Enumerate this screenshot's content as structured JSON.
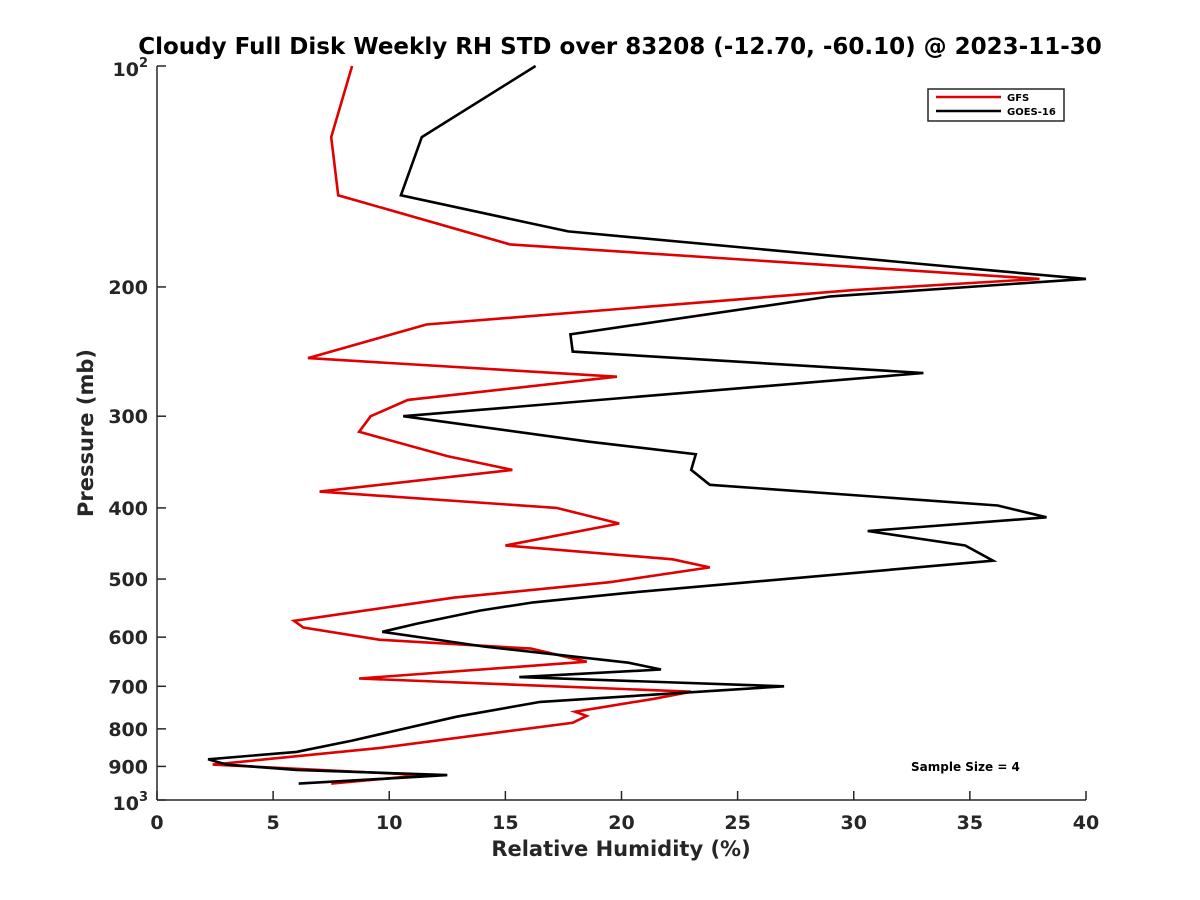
{
  "chart_data": {
    "type": "line",
    "title": "Cloudy Full Disk Weekly RH STD over 83208 (-12.70, -60.10) @ 2023-11-30",
    "xlabel": "Relative Humidity (%)",
    "ylabel": "Pressure (mb)",
    "xlim": [
      0,
      40
    ],
    "ylim": [
      100,
      1000
    ],
    "y_scale": "log",
    "y_reversed": true,
    "x_ticks": [
      "0",
      "5",
      "10",
      "15",
      "20",
      "25",
      "30",
      "35",
      "40"
    ],
    "y_ticks": [
      {
        "value": 100,
        "base": "10",
        "exp": "2"
      },
      {
        "value": 200,
        "label": "200"
      },
      {
        "value": 300,
        "label": "300"
      },
      {
        "value": 400,
        "label": "400"
      },
      {
        "value": 500,
        "label": "500"
      },
      {
        "value": 600,
        "label": "600"
      },
      {
        "value": 700,
        "label": "700"
      },
      {
        "value": 800,
        "label": "800"
      },
      {
        "value": 900,
        "label": "900"
      },
      {
        "value": 1000,
        "base": "10",
        "exp": "3"
      }
    ],
    "legend_position": "top-right",
    "annotation": "Sample Size = 4",
    "series": [
      {
        "name": "GFS",
        "color": "#e00000",
        "points": [
          [
            8.4,
            100
          ],
          [
            7.5,
            125
          ],
          [
            7.8,
            150
          ],
          [
            15.2,
            175
          ],
          [
            38.0,
            195
          ],
          [
            30.0,
            202
          ],
          [
            11.6,
            225
          ],
          [
            6.5,
            250
          ],
          [
            19.8,
            265
          ],
          [
            10.8,
            285
          ],
          [
            9.2,
            300
          ],
          [
            8.7,
            315
          ],
          [
            12.5,
            340
          ],
          [
            15.3,
            355
          ],
          [
            7.0,
            380
          ],
          [
            17.2,
            400
          ],
          [
            19.9,
            420
          ],
          [
            15.0,
            450
          ],
          [
            22.2,
            470
          ],
          [
            23.8,
            482
          ],
          [
            19.5,
            505
          ],
          [
            12.8,
            530
          ],
          [
            5.9,
            570
          ],
          [
            6.3,
            582
          ],
          [
            9.6,
            605
          ],
          [
            16.1,
            622
          ],
          [
            18.5,
            648
          ],
          [
            8.7,
            683
          ],
          [
            23.0,
            712
          ],
          [
            21.4,
            728
          ],
          [
            18.0,
            758
          ],
          [
            18.5,
            768
          ],
          [
            17.9,
            785
          ],
          [
            9.5,
            850
          ],
          [
            2.4,
            895
          ],
          [
            11.5,
            925
          ],
          [
            7.5,
            950
          ]
        ]
      },
      {
        "name": "GOES-16",
        "color": "#000000",
        "points": [
          [
            16.3,
            100
          ],
          [
            11.4,
            125
          ],
          [
            10.5,
            150
          ],
          [
            17.7,
            168
          ],
          [
            36.0,
            190
          ],
          [
            40.0,
            195
          ],
          [
            29.0,
            206
          ],
          [
            17.8,
            232
          ],
          [
            17.9,
            245
          ],
          [
            33.0,
            262
          ],
          [
            10.6,
            300
          ],
          [
            18.6,
            325
          ],
          [
            23.2,
            338
          ],
          [
            23.0,
            355
          ],
          [
            23.8,
            372
          ],
          [
            36.2,
            397
          ],
          [
            38.3,
            412
          ],
          [
            30.6,
            430
          ],
          [
            34.8,
            450
          ],
          [
            36.0,
            472
          ],
          [
            20.3,
            522
          ],
          [
            16.2,
            538
          ],
          [
            13.9,
            552
          ],
          [
            11.2,
            575
          ],
          [
            9.7,
            590
          ],
          [
            14.1,
            618
          ],
          [
            20.3,
            650
          ],
          [
            21.7,
            664
          ],
          [
            15.6,
            680
          ],
          [
            27.0,
            700
          ],
          [
            16.5,
            735
          ],
          [
            12.9,
            770
          ],
          [
            10.6,
            800
          ],
          [
            8.4,
            830
          ],
          [
            6.0,
            860
          ],
          [
            2.2,
            880
          ],
          [
            3.0,
            895
          ],
          [
            6.0,
            910
          ],
          [
            12.5,
            925
          ],
          [
            6.1,
            950
          ]
        ]
      }
    ]
  }
}
